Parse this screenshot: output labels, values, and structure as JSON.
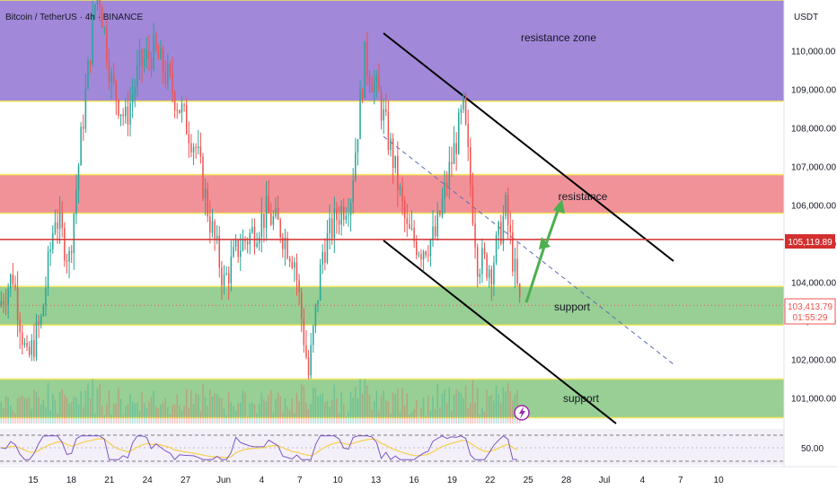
{
  "header": {
    "symbol_line": "Bitcoin / TetherUS · 4h · BINANCE",
    "currency": "USDT"
  },
  "chart_data": {
    "type": "candlestick",
    "title": "Bitcoin / TetherUS · 4h · BINANCE",
    "y_axis_unit": "USDT",
    "ylim": [
      100500,
      112200
    ],
    "y_ticks": [
      "101,000.00",
      "102,000.00",
      "103,000.00",
      "104,000.00",
      "105,000.00",
      "106,000.00",
      "107,000.00",
      "108,000.00",
      "109,000.00",
      "110,000.00"
    ],
    "y_tick_values": [
      101000,
      102000,
      103000,
      104000,
      105000,
      106000,
      107000,
      108000,
      109000,
      110000
    ],
    "x_ticks": [
      "15",
      "18",
      "21",
      "24",
      "27",
      "Jun",
      "4",
      "7",
      "10",
      "13",
      "16",
      "19",
      "22",
      "25",
      "28",
      "Jul",
      "4",
      "7",
      "10"
    ],
    "price_path": [
      {
        "label": "15",
        "close": 103400
      },
      {
        "label": "16",
        "close": 104200
      },
      {
        "label": "17",
        "close": 101900
      },
      {
        "label": "18",
        "close": 103000
      },
      {
        "label": "19",
        "close": 105800
      },
      {
        "label": "20",
        "close": 104600
      },
      {
        "label": "21",
        "close": 108300
      },
      {
        "label": "22",
        "close": 111800
      },
      {
        "label": "23",
        "close": 109200
      },
      {
        "label": "24",
        "close": 108200
      },
      {
        "label": "25",
        "close": 109600
      },
      {
        "label": "26",
        "close": 110000
      },
      {
        "label": "27",
        "close": 109300
      },
      {
        "label": "28",
        "close": 108400
      },
      {
        "label": "29",
        "close": 107500
      },
      {
        "label": "30",
        "close": 105600
      },
      {
        "label": "31",
        "close": 104000
      },
      {
        "label": "Jun",
        "close": 104900
      },
      {
        "label": "2",
        "close": 105300
      },
      {
        "label": "3",
        "close": 105800
      },
      {
        "label": "4",
        "close": 105400
      },
      {
        "label": "5",
        "close": 104600
      },
      {
        "label": "6",
        "close": 101600
      },
      {
        "label": "7",
        "close": 104800
      },
      {
        "label": "8",
        "close": 105700
      },
      {
        "label": "9",
        "close": 106300
      },
      {
        "label": "10",
        "close": 109800
      },
      {
        "label": "11",
        "close": 108800
      },
      {
        "label": "12",
        "close": 107200
      },
      {
        "label": "13",
        "close": 105300
      },
      {
        "label": "14",
        "close": 104900
      },
      {
        "label": "15",
        "close": 105200
      },
      {
        "label": "16",
        "close": 106900
      },
      {
        "label": "17",
        "close": 108500
      },
      {
        "label": "18",
        "close": 104600
      },
      {
        "label": "19",
        "close": 104400
      },
      {
        "label": "20",
        "close": 105900
      },
      {
        "label": "21",
        "close": 103400
      }
    ],
    "current_price": {
      "label": "103,413.79",
      "countdown": "01:55:29",
      "value": 103413.79
    },
    "marked_price": {
      "label": "105,119.89",
      "value": 105119.89
    },
    "zones": [
      {
        "name": "resistance zone",
        "from": 108700,
        "to": 112200,
        "color": "#9c82d6"
      },
      {
        "name": "resistance",
        "from": 105800,
        "to": 106800,
        "color": "#f08c94"
      },
      {
        "name": "support",
        "from": 102900,
        "to": 103900,
        "color": "#92cc8f"
      },
      {
        "name": "support",
        "from": 100500,
        "to": 101500,
        "color": "#92cc8f"
      }
    ],
    "annotations": [
      "resistance zone",
      "resistance",
      "support",
      "support"
    ],
    "oscillator": {
      "label": "50.00",
      "value": 50
    }
  },
  "colors": {
    "up": "#26a69a",
    "down": "#ef5350",
    "price_line": "#d32f2f",
    "arrow": "#4caf50",
    "rsi": "#7e57c2",
    "rsi_ma": "#f5d04c"
  }
}
